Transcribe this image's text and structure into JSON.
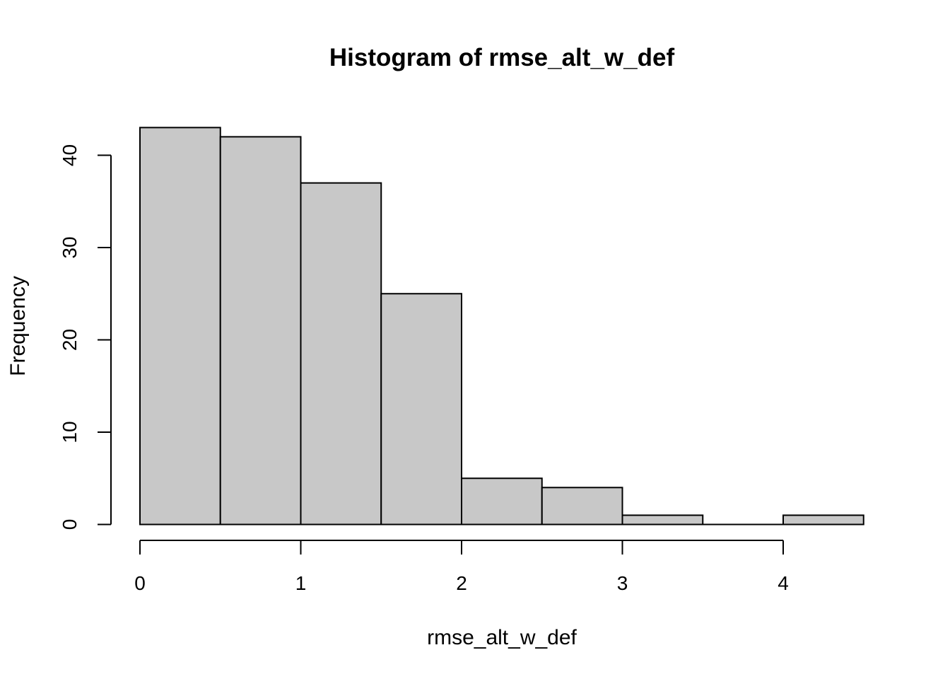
{
  "chart_data": {
    "type": "bar",
    "title": "Histogram of rmse_alt_w_def",
    "xlabel": "rmse_alt_w_def",
    "ylabel": "Frequency",
    "bins": [
      {
        "start": 0.0,
        "end": 0.5,
        "count": 43
      },
      {
        "start": 0.5,
        "end": 1.0,
        "count": 42
      },
      {
        "start": 1.0,
        "end": 1.5,
        "count": 37
      },
      {
        "start": 1.5,
        "end": 2.0,
        "count": 25
      },
      {
        "start": 2.0,
        "end": 2.5,
        "count": 5
      },
      {
        "start": 2.5,
        "end": 3.0,
        "count": 4
      },
      {
        "start": 3.0,
        "end": 3.5,
        "count": 1
      },
      {
        "start": 3.5,
        "end": 4.0,
        "count": 0
      },
      {
        "start": 4.0,
        "end": 4.5,
        "count": 1
      }
    ],
    "xlim": [
      0,
      4.5
    ],
    "ylim": [
      0,
      43
    ],
    "x_ticks": [
      0,
      1,
      2,
      3,
      4
    ],
    "y_ticks": [
      0,
      10,
      20,
      30,
      40
    ],
    "grid": false,
    "colors": {
      "bar_fill": "#c8c8c8",
      "bar_stroke": "#000000"
    }
  }
}
